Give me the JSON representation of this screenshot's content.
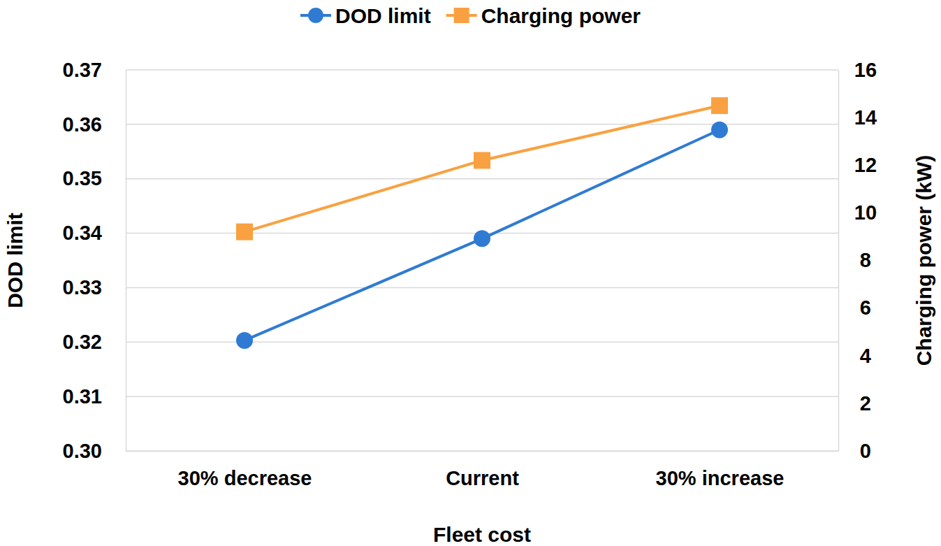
{
  "chart_data": {
    "type": "line",
    "x_label": "Fleet cost",
    "y_label": "DOD limit",
    "y2_label": "Charging power (kW)",
    "categories": [
      "30% decrease",
      "Current",
      "30% increase"
    ],
    "series": [
      {
        "name": "DOD limit",
        "color": "#2F7BD3",
        "marker": "circle",
        "values": [
          0.3203,
          0.339,
          0.359
        ]
      },
      {
        "name": "Charging power",
        "color": "#F9A140",
        "marker": "square",
        "axis": "y2",
        "values": [
          9.2,
          12.2,
          14.5
        ]
      }
    ],
    "ylim": [
      0.3,
      0.37
    ],
    "yticks": [
      {
        "value": 0.3,
        "label": "0.30"
      },
      0.31,
      0.32,
      0.33,
      0.34,
      0.35,
      0.36,
      0.37
    ],
    "y2lim": [
      0,
      16
    ],
    "y2ticks": [
      0,
      2,
      4,
      6,
      8,
      10,
      12,
      14,
      16
    ],
    "grid": true,
    "legend": "top"
  }
}
